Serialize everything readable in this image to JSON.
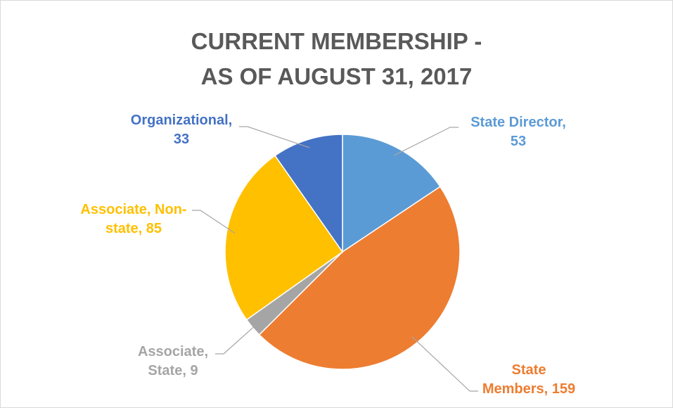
{
  "chart_data": {
    "type": "pie",
    "title": "CURRENT MEMBERSHIP -\nAS OF AUGUST 31, 2017",
    "values": [
      53,
      159,
      9,
      85,
      33
    ],
    "value_labels": [
      "State Director,\n53",
      "State\nMembers, 159",
      "Associate,\nState, 9",
      "Associate, Non-\nstate, 85",
      "Organizational,\n33"
    ],
    "colors": [
      "#5b9bd5",
      "#ed7d31",
      "#a5a5a5",
      "#ffc000",
      "#4472c4"
    ]
  }
}
